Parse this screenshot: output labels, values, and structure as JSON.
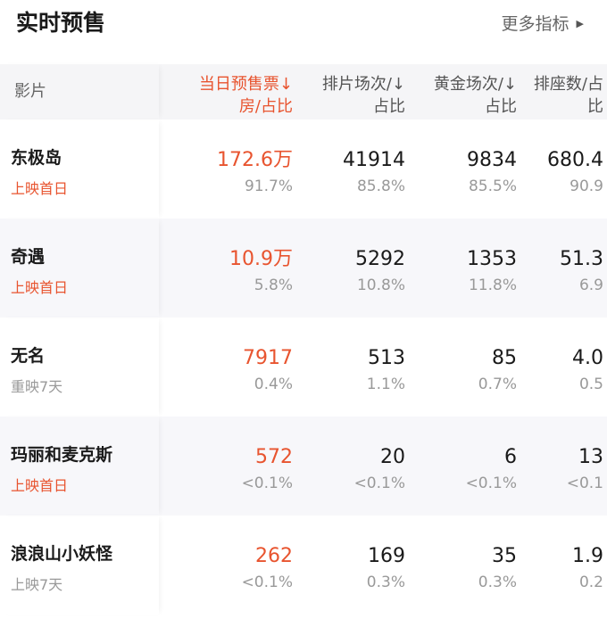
{
  "header": {
    "title": "实时预售",
    "more_label": "更多指标",
    "more_icon": "triangle-right-icon"
  },
  "columns": [
    {
      "label": "影片"
    },
    {
      "label_line1": "当日预售票↓",
      "label_line2": "房/占比",
      "active": true
    },
    {
      "label_line1": "排片场次/↓",
      "label_line2": "占比"
    },
    {
      "label_line1": "黄金场次/↓",
      "label_line2": "占比"
    },
    {
      "label_line1": "排座数/占",
      "label_line2": "比"
    }
  ],
  "colors": {
    "accent": "#e8542f",
    "text": "#1a1a1a",
    "muted": "#999999",
    "row_alt": "#f7f7fa"
  },
  "rows": [
    {
      "name": "东极岛",
      "status": "上映首日",
      "first_day": true,
      "box": "172.6万",
      "box_pct": "91.7%",
      "shows": "41914",
      "shows_pct": "85.8%",
      "gold": "9834",
      "gold_pct": "85.5%",
      "seats": "680.4",
      "seats_pct": "90.9"
    },
    {
      "name": "奇遇",
      "status": "上映首日",
      "first_day": true,
      "box": "10.9万",
      "box_pct": "5.8%",
      "shows": "5292",
      "shows_pct": "10.8%",
      "gold": "1353",
      "gold_pct": "11.8%",
      "seats": "51.3",
      "seats_pct": "6.9"
    },
    {
      "name": "无名",
      "status": "重映7天",
      "first_day": false,
      "box": "7917",
      "box_pct": "0.4%",
      "shows": "513",
      "shows_pct": "1.1%",
      "gold": "85",
      "gold_pct": "0.7%",
      "seats": "4.0",
      "seats_pct": "0.5"
    },
    {
      "name": "玛丽和麦克斯",
      "status": "上映首日",
      "first_day": true,
      "box": "572",
      "box_pct": "<0.1%",
      "shows": "20",
      "shows_pct": "<0.1%",
      "gold": "6",
      "gold_pct": "<0.1%",
      "seats": "13",
      "seats_pct": "<0.1"
    },
    {
      "name": "浪浪山小妖怪",
      "status": "上映7天",
      "first_day": false,
      "box": "262",
      "box_pct": "<0.1%",
      "shows": "169",
      "shows_pct": "0.3%",
      "gold": "35",
      "gold_pct": "0.3%",
      "seats": "1.9",
      "seats_pct": "0.2"
    }
  ]
}
